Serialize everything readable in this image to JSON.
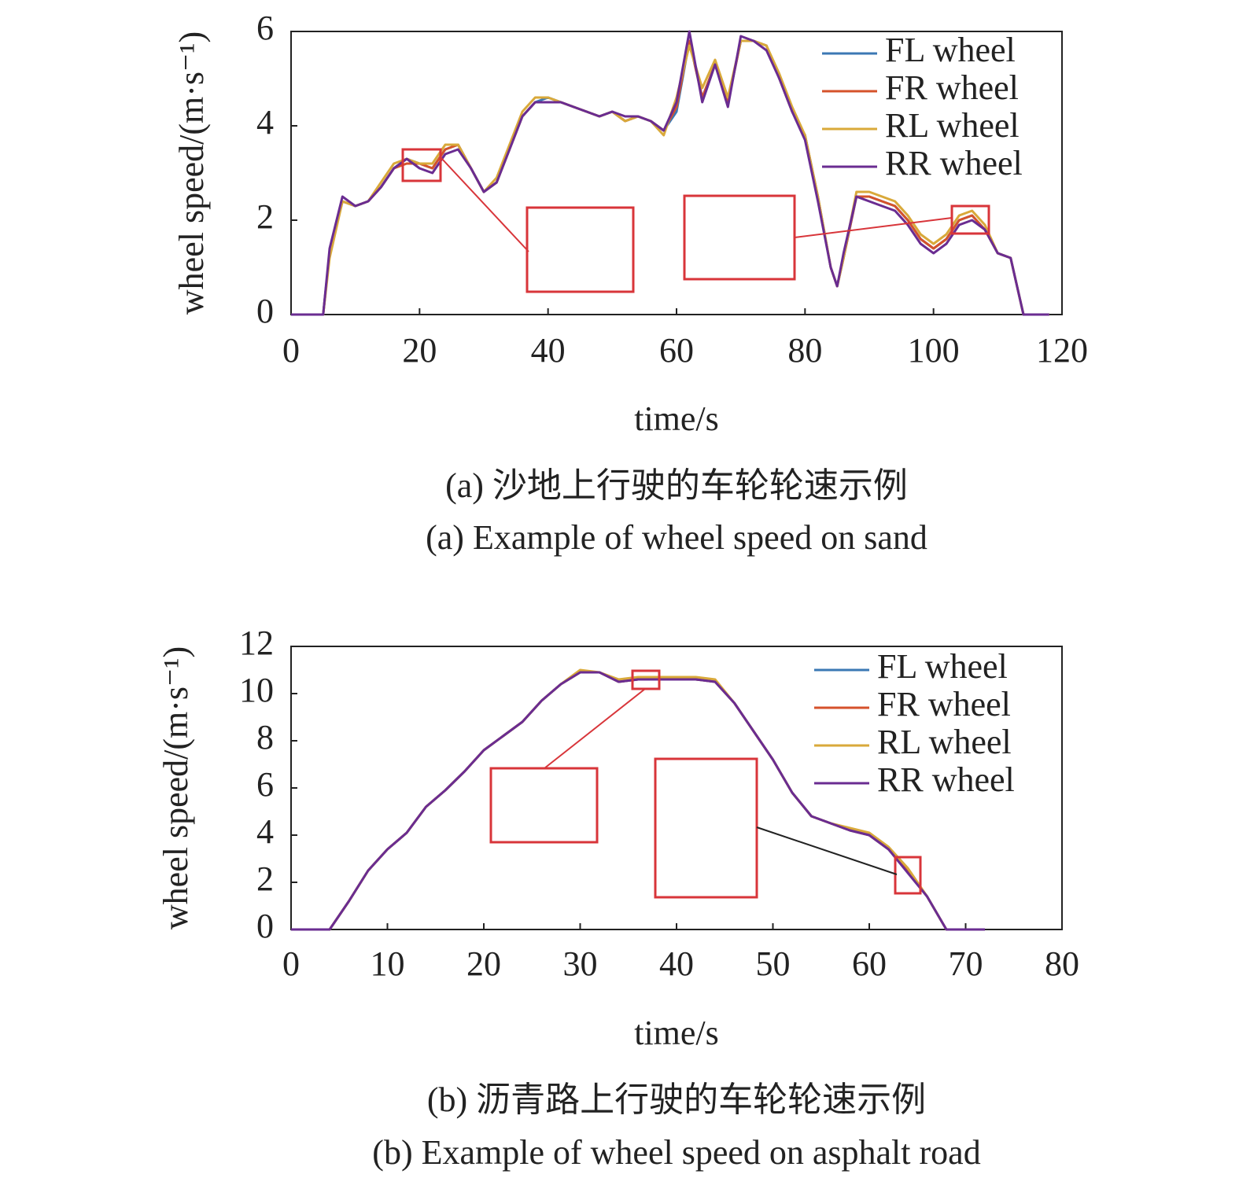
{
  "chart_data": [
    {
      "type": "line",
      "x_label": "time/s",
      "y_label": "wheel speed/(m·s⁻¹)",
      "caption_zh": "(a) 沙地上行驶的车轮轮速示例",
      "caption_en": "(a) Example of wheel speed on sand",
      "x": [
        0,
        4,
        5,
        6,
        8,
        10,
        12,
        14,
        16,
        18,
        20,
        22,
        24,
        26,
        28,
        30,
        32,
        34,
        36,
        38,
        40,
        42,
        44,
        46,
        48,
        50,
        52,
        54,
        56,
        58,
        60,
        62,
        64,
        66,
        68,
        70,
        72,
        74,
        76,
        78,
        80,
        82,
        84,
        85,
        86,
        88,
        90,
        92,
        94,
        96,
        98,
        100,
        102,
        104,
        106,
        108,
        110,
        112,
        114,
        116,
        118
      ],
      "series": [
        {
          "name": "FL wheel",
          "color": "#3b78b4",
          "values": [
            0,
            0,
            0,
            1.3,
            2.4,
            2.3,
            2.4,
            2.7,
            3.1,
            3.3,
            3.2,
            3.1,
            3.5,
            3.6,
            3.1,
            2.6,
            2.8,
            3.5,
            4.2,
            4.5,
            4.6,
            4.5,
            4.4,
            4.3,
            4.2,
            4.3,
            4.1,
            4.2,
            4.1,
            3.9,
            4.3,
            5.8,
            4.6,
            5.3,
            4.5,
            5.8,
            5.8,
            5.7,
            5.0,
            4.3,
            3.8,
            2.5,
            1.0,
            0.6,
            1.2,
            2.5,
            2.5,
            2.4,
            2.3,
            2.0,
            1.6,
            1.4,
            1.6,
            2.0,
            2.1,
            1.8,
            1.3,
            1.2,
            0,
            0,
            0
          ]
        },
        {
          "name": "FR wheel",
          "color": "#d5522b",
          "values": [
            0,
            0,
            0,
            1.3,
            2.4,
            2.3,
            2.4,
            2.7,
            3.1,
            3.2,
            3.2,
            3.1,
            3.5,
            3.6,
            3.1,
            2.6,
            2.8,
            3.5,
            4.2,
            4.5,
            4.5,
            4.5,
            4.4,
            4.3,
            4.2,
            4.3,
            4.1,
            4.2,
            4.1,
            3.9,
            4.4,
            5.8,
            4.6,
            5.3,
            4.5,
            5.8,
            5.8,
            5.7,
            5.0,
            4.3,
            3.8,
            2.5,
            1.0,
            0.6,
            1.2,
            2.5,
            2.5,
            2.4,
            2.3,
            2.0,
            1.6,
            1.4,
            1.6,
            2.0,
            2.1,
            1.8,
            1.3,
            1.2,
            0,
            0,
            0
          ]
        },
        {
          "name": "RL wheel",
          "color": "#d9a93a",
          "values": [
            0,
            0,
            0,
            1.2,
            2.4,
            2.3,
            2.4,
            2.8,
            3.2,
            3.3,
            3.2,
            3.2,
            3.6,
            3.6,
            3.1,
            2.6,
            2.9,
            3.6,
            4.3,
            4.6,
            4.6,
            4.5,
            4.4,
            4.3,
            4.2,
            4.3,
            4.1,
            4.2,
            4.1,
            3.8,
            4.6,
            5.7,
            4.8,
            5.4,
            4.6,
            5.8,
            5.8,
            5.7,
            5.1,
            4.4,
            3.8,
            2.5,
            1.0,
            0.6,
            1.2,
            2.6,
            2.6,
            2.5,
            2.4,
            2.1,
            1.7,
            1.5,
            1.7,
            2.1,
            2.2,
            1.9,
            1.3,
            1.2,
            0,
            0,
            0
          ]
        },
        {
          "name": "RR wheel",
          "color": "#6a2c91",
          "values": [
            0,
            0,
            0,
            1.4,
            2.5,
            2.3,
            2.4,
            2.7,
            3.1,
            3.3,
            3.1,
            3.0,
            3.4,
            3.5,
            3.1,
            2.6,
            2.8,
            3.5,
            4.2,
            4.5,
            4.5,
            4.5,
            4.4,
            4.3,
            4.2,
            4.3,
            4.2,
            4.2,
            4.1,
            3.9,
            4.5,
            6.0,
            4.5,
            5.3,
            4.4,
            5.9,
            5.8,
            5.6,
            5.0,
            4.3,
            3.7,
            2.4,
            1.0,
            0.6,
            1.3,
            2.5,
            2.4,
            2.3,
            2.2,
            1.9,
            1.5,
            1.3,
            1.5,
            1.9,
            2.0,
            1.8,
            1.3,
            1.2,
            0,
            0,
            0
          ]
        }
      ],
      "xlim": [
        0,
        120
      ],
      "xticks": [
        0,
        20,
        40,
        60,
        80,
        100,
        120
      ],
      "ylim": [
        0,
        6
      ],
      "yticks": [
        0,
        2,
        4,
        6
      ],
      "legend": "upper right"
    },
    {
      "type": "line",
      "x_label": "time/s",
      "y_label": "wheel speed/(m·s⁻¹)",
      "caption_zh": "(b) 沥青路上行驶的车轮轮速示例",
      "caption_en": "(b) Example of wheel speed on asphalt road",
      "x": [
        0,
        2,
        4,
        6,
        8,
        10,
        12,
        14,
        16,
        18,
        20,
        22,
        24,
        26,
        28,
        30,
        32,
        34,
        36,
        38,
        40,
        42,
        44,
        46,
        48,
        50,
        52,
        54,
        56,
        58,
        60,
        62,
        64,
        66,
        68,
        70,
        72
      ],
      "series": [
        {
          "name": "FL wheel",
          "color": "#3b78b4",
          "values": [
            0,
            0,
            0,
            1.2,
            2.5,
            3.4,
            4.1,
            5.2,
            5.9,
            6.7,
            7.6,
            8.2,
            8.8,
            9.7,
            10.4,
            10.9,
            10.9,
            10.5,
            10.6,
            10.6,
            10.6,
            10.6,
            10.5,
            9.6,
            8.4,
            7.2,
            5.8,
            4.8,
            4.5,
            4.2,
            4.0,
            3.4,
            2.5,
            1.4,
            0,
            0,
            0
          ]
        },
        {
          "name": "FR wheel",
          "color": "#d5522b",
          "values": [
            0,
            0,
            0,
            1.2,
            2.5,
            3.4,
            4.1,
            5.2,
            5.9,
            6.7,
            7.6,
            8.2,
            8.8,
            9.7,
            10.4,
            10.9,
            10.9,
            10.5,
            10.6,
            10.6,
            10.6,
            10.6,
            10.5,
            9.6,
            8.4,
            7.2,
            5.8,
            4.8,
            4.5,
            4.2,
            4.0,
            3.4,
            2.5,
            1.4,
            0,
            0,
            0
          ]
        },
        {
          "name": "RL wheel",
          "color": "#d9a93a",
          "values": [
            0,
            0,
            0,
            1.2,
            2.5,
            3.4,
            4.1,
            5.2,
            5.9,
            6.7,
            7.6,
            8.2,
            8.8,
            9.7,
            10.4,
            11.0,
            10.9,
            10.6,
            10.7,
            10.7,
            10.7,
            10.7,
            10.6,
            9.6,
            8.4,
            7.2,
            5.8,
            4.8,
            4.5,
            4.3,
            4.1,
            3.5,
            2.6,
            1.4,
            0,
            0,
            0
          ]
        },
        {
          "name": "RR wheel",
          "color": "#6a2c91",
          "values": [
            0,
            0,
            0,
            1.2,
            2.5,
            3.4,
            4.1,
            5.2,
            5.9,
            6.7,
            7.6,
            8.2,
            8.8,
            9.7,
            10.4,
            10.9,
            10.9,
            10.5,
            10.6,
            10.6,
            10.6,
            10.6,
            10.5,
            9.6,
            8.4,
            7.2,
            5.8,
            4.8,
            4.5,
            4.2,
            4.0,
            3.4,
            2.4,
            1.4,
            0,
            0,
            0
          ]
        }
      ],
      "xlim": [
        0,
        80
      ],
      "xticks": [
        0,
        10,
        20,
        30,
        40,
        50,
        60,
        70,
        80
      ],
      "ylim": [
        0,
        12
      ],
      "yticks": [
        0,
        2,
        4,
        6,
        8,
        10,
        12
      ],
      "legend": "upper right"
    }
  ]
}
